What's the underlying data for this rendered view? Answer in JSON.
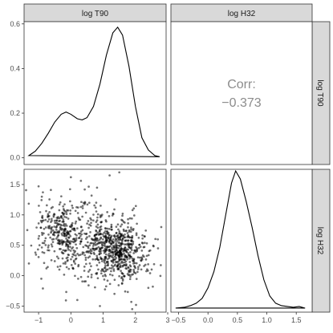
{
  "chart_data": {
    "type": "scatter-matrix",
    "variables": [
      "log T90",
      "log H32"
    ],
    "panels": [
      {
        "id": "T90-density",
        "row": 0,
        "col": 0,
        "type": "density",
        "xlim": [
          -1.45,
          2.95
        ],
        "ylim": [
          -0.03,
          0.61
        ],
        "y_ticks": [
          0.0,
          0.2,
          0.4,
          0.6
        ],
        "y_tick_labels": [
          "0.0",
          "0.2",
          "0.4",
          "0.6"
        ],
        "curve": [
          [
            -1.3,
            0.01
          ],
          [
            -1.1,
            0.03
          ],
          [
            -0.9,
            0.065
          ],
          [
            -0.7,
            0.11
          ],
          [
            -0.5,
            0.16
          ],
          [
            -0.3,
            0.195
          ],
          [
            -0.15,
            0.205
          ],
          [
            0.0,
            0.195
          ],
          [
            0.2,
            0.175
          ],
          [
            0.35,
            0.17
          ],
          [
            0.5,
            0.18
          ],
          [
            0.7,
            0.23
          ],
          [
            0.9,
            0.33
          ],
          [
            1.1,
            0.46
          ],
          [
            1.3,
            0.56
          ],
          [
            1.45,
            0.585
          ],
          [
            1.6,
            0.55
          ],
          [
            1.8,
            0.41
          ],
          [
            2.0,
            0.23
          ],
          [
            2.2,
            0.09
          ],
          [
            2.4,
            0.035
          ],
          [
            2.6,
            0.01
          ],
          [
            2.75,
            0.005
          ]
        ]
      },
      {
        "id": "corr",
        "row": 0,
        "col": 1,
        "type": "correlation",
        "label": "Corr:",
        "value": "−0.373"
      },
      {
        "id": "scatter",
        "row": 1,
        "col": 0,
        "type": "scatter",
        "xlim": [
          -1.45,
          2.95
        ],
        "ylim": [
          -0.6,
          1.75
        ],
        "x_ticks": [
          -1,
          0,
          1,
          2,
          3
        ],
        "x_tick_labels": [
          "−1",
          "0",
          "1",
          "2",
          "3"
        ],
        "y_ticks": [
          -0.5,
          0.0,
          0.5,
          1.0,
          1.5
        ],
        "y_tick_labels": [
          "−0.5",
          "0.0",
          "0.5",
          "1.0",
          "1.5"
        ],
        "point_color": "#000000",
        "clusters": [
          {
            "cx": 1.45,
            "cy": 0.4,
            "sx": 0.45,
            "sy": 0.22,
            "n": 560
          },
          {
            "cx": -0.2,
            "cy": 0.72,
            "sx": 0.45,
            "sy": 0.28,
            "n": 300
          },
          {
            "cx": 0.6,
            "cy": 0.55,
            "sx": 0.75,
            "sy": 0.38,
            "n": 220
          }
        ],
        "points": [
          [
            -1.0,
            1.47
          ],
          [
            0.0,
            1.62
          ],
          [
            1.2,
            1.65
          ],
          [
            1.5,
            1.7
          ],
          [
            -0.9,
            1.3
          ],
          [
            2.8,
            0.8
          ],
          [
            2.7,
            0.45
          ],
          [
            1.9,
            -0.55
          ],
          [
            0.9,
            -0.5
          ],
          [
            0.2,
            -0.4
          ],
          [
            -1.35,
            0.75
          ],
          [
            -1.3,
            0.2
          ],
          [
            1.35,
            -0.3
          ],
          [
            2.4,
            -0.2
          ]
        ]
      },
      {
        "id": "H32-density",
        "row": 1,
        "col": 1,
        "type": "density",
        "xlim": [
          -0.63,
          1.77
        ],
        "ylim": [
          -0.05,
          1.72
        ],
        "x_ticks": [
          -0.5,
          0.0,
          0.5,
          1.0,
          1.5
        ],
        "x_tick_labels": [
          "−0.5",
          "0.0",
          "0.5",
          "1.0",
          "1.5"
        ],
        "curve": [
          [
            -0.55,
            0.0
          ],
          [
            -0.4,
            0.01
          ],
          [
            -0.3,
            0.03
          ],
          [
            -0.2,
            0.06
          ],
          [
            -0.1,
            0.12
          ],
          [
            0.0,
            0.25
          ],
          [
            0.1,
            0.45
          ],
          [
            0.2,
            0.75
          ],
          [
            0.3,
            1.15
          ],
          [
            0.4,
            1.55
          ],
          [
            0.47,
            1.7
          ],
          [
            0.55,
            1.6
          ],
          [
            0.65,
            1.32
          ],
          [
            0.75,
            1.0
          ],
          [
            0.85,
            0.65
          ],
          [
            0.95,
            0.35
          ],
          [
            1.05,
            0.15
          ],
          [
            1.15,
            0.06
          ],
          [
            1.25,
            0.03
          ],
          [
            1.35,
            0.02
          ],
          [
            1.45,
            0.01
          ],
          [
            1.55,
            0.02
          ],
          [
            1.65,
            0.0
          ]
        ]
      }
    ],
    "grid": false,
    "strip_color": "#d9d9d9",
    "line_color": "#000000"
  }
}
